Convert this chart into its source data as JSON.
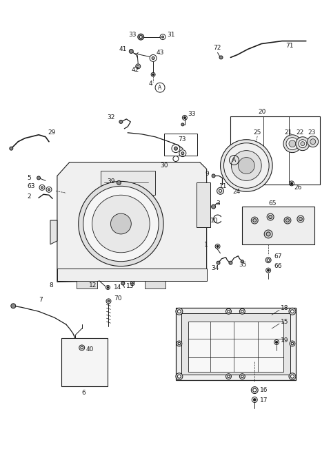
{
  "bg_color": "#ffffff",
  "line_color": "#1a1a1a",
  "fig_width": 4.8,
  "fig_height": 6.55,
  "dpi": 100
}
